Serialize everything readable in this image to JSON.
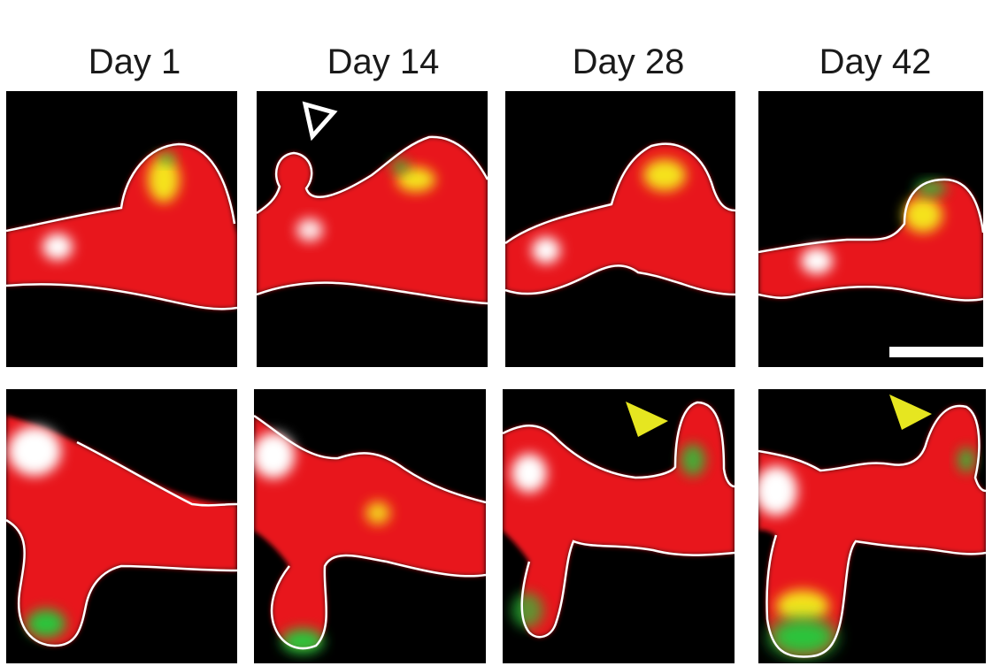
{
  "figure": {
    "columns": [
      {
        "label": "Day 1"
      },
      {
        "label": "Day 14"
      },
      {
        "label": "Day 28"
      },
      {
        "label": "Day 42"
      }
    ],
    "colors": {
      "background": "#ffffff",
      "panel": "#000000",
      "dendrite_red": "#e8191a",
      "synapse_yellow": "#f5e21a",
      "marker_green": "#2cc43a",
      "soma_white": "#ffffff",
      "arrowhead_yellow": "#e6e620",
      "outline": "#ffffff"
    },
    "annotations": {
      "open_arrowhead": {
        "panel": "top-day-14",
        "icon": "open-arrowhead-icon"
      },
      "filled_arrowheads": [
        {
          "panel": "bottom-day-28",
          "icon": "filled-arrowhead-icon"
        },
        {
          "panel": "bottom-day-42",
          "icon": "filled-arrowhead-icon"
        }
      ],
      "scale_bar": {
        "panel": "top-day-42"
      }
    }
  }
}
